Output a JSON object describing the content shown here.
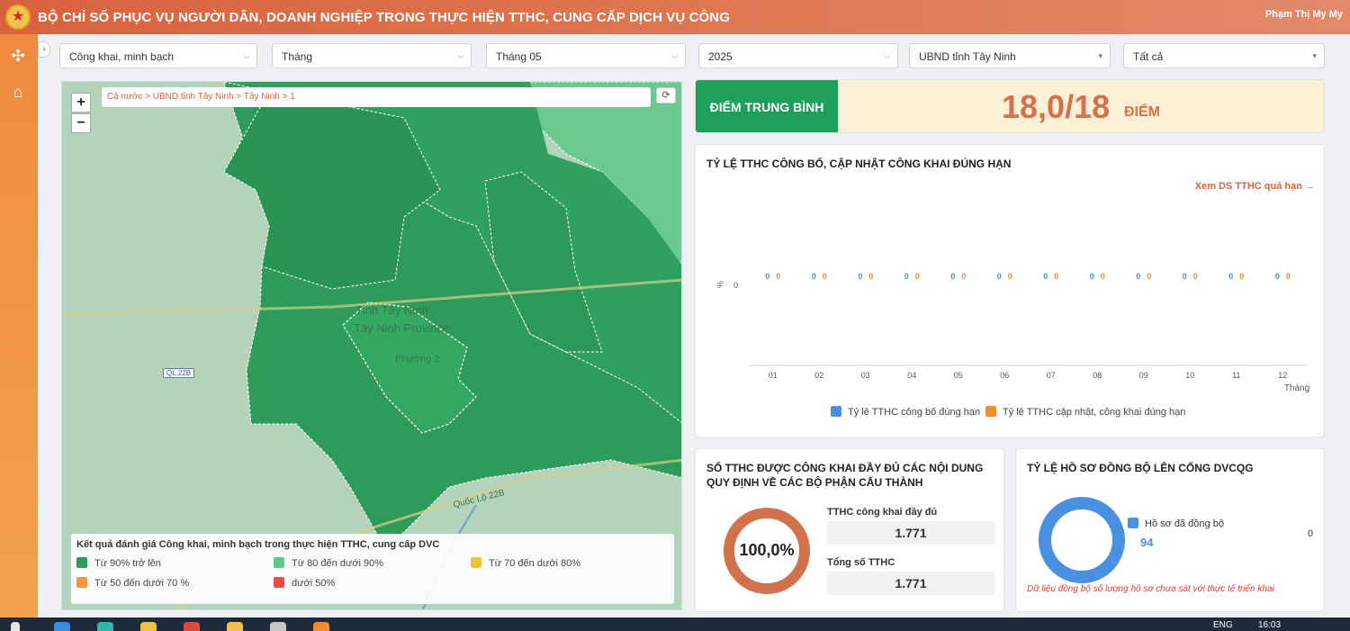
{
  "header": {
    "title": "BỘ CHỈ SỐ PHỤC VỤ NGƯỜI DÂN, DOANH NGHIỆP TRONG THỰC HIỆN TTHC, CUNG CẤP DỊCH VỤ CÔNG",
    "user_name": "Phạm Thị My My"
  },
  "sidebar": {
    "icons": [
      "grid-icon",
      "home-icon"
    ]
  },
  "filters": [
    {
      "value": "Công khai, minh bạch"
    },
    {
      "value": "Tháng"
    },
    {
      "value": "Tháng 05"
    },
    {
      "value": "2025"
    },
    {
      "value": "UBND tỉnh Tây Ninh"
    },
    {
      "value": "Tất cả"
    }
  ],
  "map": {
    "breadcrumb": "Cả nước > UBND tỉnh Tây Ninh > Tây Ninh > 1",
    "zoom_in": "+",
    "zoom_out": "−",
    "labels": {
      "province": "Tỉnh Tây Ninh",
      "province_en": "Tây Ninh Province",
      "ward": "Phường 2",
      "road_tag": "QL.22B",
      "road_name": "Quốc Lộ 22B"
    },
    "legend": {
      "title": "Kết quả đánh giá Công khai, minh bạch trong thực hiện TTHC, cung cấp DVC",
      "items": [
        {
          "label": "Từ 90% trở lên",
          "color": "#2e9b5a"
        },
        {
          "label": "Từ 80 đến dưới 90%",
          "color": "#5ec98a"
        },
        {
          "label": "Từ 70 đến dưới 80%",
          "color": "#f0c23c"
        },
        {
          "label": "Từ 50 đến dưới 70 %",
          "color": "#f7983a"
        },
        {
          "label": "dưới 50%",
          "color": "#ee4a4a"
        }
      ]
    }
  },
  "score": {
    "label": "ĐIỂM TRUNG BÌNH",
    "value": "18,0/18",
    "unit": "ĐIỂM"
  },
  "rate_card": {
    "title": "TỶ LỆ TTHC CÔNG BỐ, CẬP NHẬT CÔNG KHAI ĐÚNG HẠN",
    "link": "Xem DS TTHC quá hạn →",
    "legend": [
      "Tỷ lệ TTHC công bố đúng hạn",
      "Tỷ lệ TTHC cập nhật, công khai đúng hạn"
    ]
  },
  "chart_data": {
    "type": "bar",
    "categories": [
      "01",
      "02",
      "03",
      "04",
      "05",
      "06",
      "07",
      "08",
      "09",
      "10",
      "11",
      "12"
    ],
    "series": [
      {
        "name": "Tỷ lệ TTHC công bố đúng hạn",
        "values": [
          0,
          0,
          0,
          0,
          0,
          0,
          0,
          0,
          0,
          0,
          0,
          0
        ],
        "color": "#4a90e2"
      },
      {
        "name": "Tỷ lệ TTHC cập nhật, công khai đúng hạn",
        "values": [
          0,
          0,
          0,
          0,
          0,
          0,
          0,
          0,
          0,
          0,
          0,
          0
        ],
        "color": "#f28c2a"
      }
    ],
    "xlabel": "Tháng",
    "ylabel": "%",
    "y_ticks": [
      "0"
    ],
    "grid": false,
    "legend_position": "bottom"
  },
  "public_card": {
    "title_line1": "SỐ TTHC ĐƯỢC CÔNG KHAI ĐẦY ĐỦ CÁC NỘI DUNG",
    "title_line2": "QUY ĐỊNH VỀ CÁC BỘ PHẬN CẤU THÀNH",
    "percent_label": "100,0%",
    "percent_value": 100,
    "full_label": "TTHC công khai đầy đủ",
    "full_value": "1.771",
    "total_label": "Tổng số TTHC",
    "total_value": "1.771",
    "ring_color": "#d2714e"
  },
  "sync_card": {
    "title": "TỶ LỆ HỒ SƠ ĐỒNG BỘ LÊN CỔNG DVCQG",
    "legend_label": "Hồ sơ đã đồng bộ",
    "legend_value": "94",
    "side_value": "0",
    "note": "Dữ liệu đồng bộ số lượng hồ sơ chưa sát với thực tế triển khai",
    "ring_color": "#4a90e2"
  },
  "taskbar": {
    "lang": "ENG",
    "time": "16:03"
  }
}
